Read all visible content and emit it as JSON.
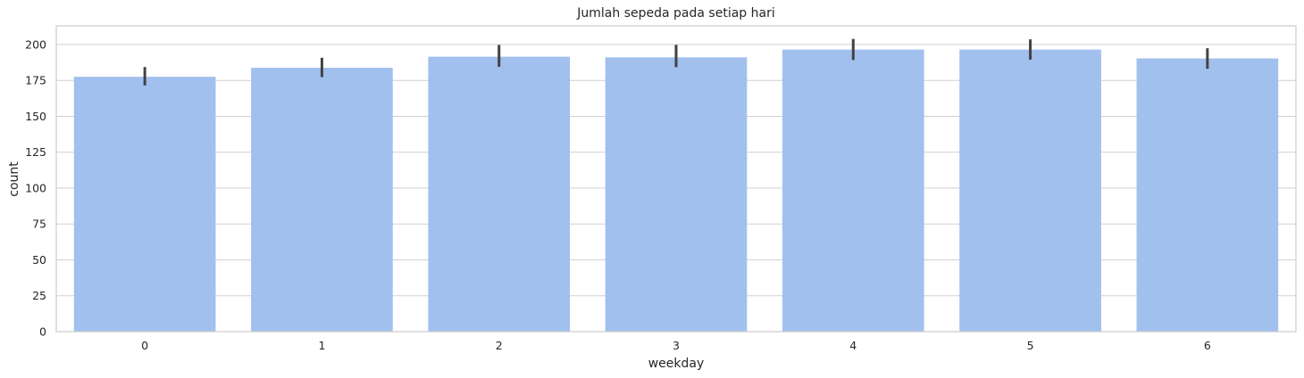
{
  "chart_data": {
    "type": "bar",
    "title": "Jumlah sepeda pada setiap hari",
    "xlabel": "weekday",
    "ylabel": "count",
    "categories": [
      "0",
      "1",
      "2",
      "3",
      "4",
      "5",
      "6"
    ],
    "values": [
      177.5,
      183.8,
      191.5,
      191.1,
      196.5,
      196.5,
      190.3
    ],
    "error_low": [
      171.5,
      177.3,
      184.5,
      184.2,
      189.2,
      189.5,
      183.1
    ],
    "error_high": [
      184.3,
      190.8,
      199.7,
      199.8,
      203.9,
      203.6,
      197.4
    ],
    "ylim": [
      0,
      213
    ],
    "yticks": [
      "0",
      "25",
      "50",
      "75",
      "100",
      "125",
      "150",
      "175",
      "200"
    ],
    "grid": "horizontal",
    "bar_color": "#a1c0ee",
    "errorbar_color": "#424242",
    "grid_color": "#d0d0d0",
    "spine_color": "#cccccc"
  }
}
